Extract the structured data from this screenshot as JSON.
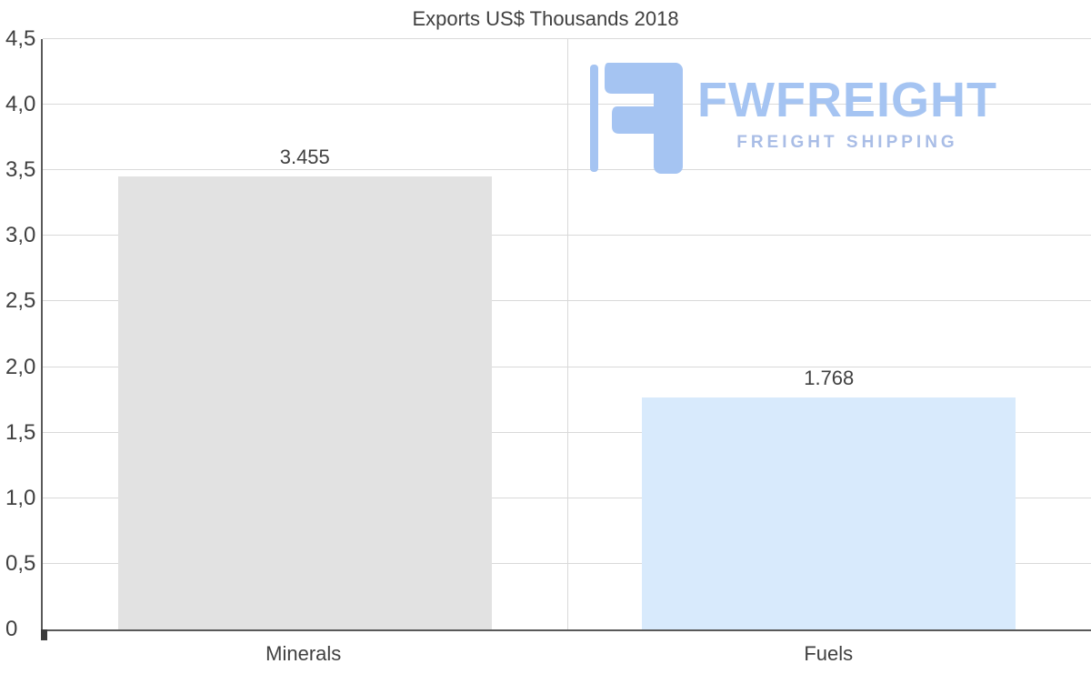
{
  "chart_data": {
    "type": "bar",
    "title": "Exports US$ Thousands 2018",
    "categories": [
      "Minerals",
      "Fuels"
    ],
    "values": [
      3.455,
      1.768
    ],
    "value_labels": [
      "3.455",
      "1.768"
    ],
    "xlabel": "",
    "ylabel": "",
    "ylim": [
      0,
      4.5
    ],
    "ytick_step": 0.5,
    "ytick_labels": [
      "0",
      "0,5",
      "1,0",
      "1,5",
      "2,0",
      "2,5",
      "3,0",
      "3,5",
      "4,0",
      "4,5"
    ],
    "grid": true,
    "legend": "none",
    "bar_colors": [
      "#e2e2e2",
      "#d8eafc"
    ],
    "gridline_color": "#d9d9d9",
    "axis_color": "#595959",
    "text_color": "#404040"
  },
  "watermark": {
    "brand": "FWFREIGHT",
    "tagline": "FREIGHT SHIPPING",
    "brand_color": "#a5c4f2",
    "icon": "fw-freight-logo-icon"
  }
}
